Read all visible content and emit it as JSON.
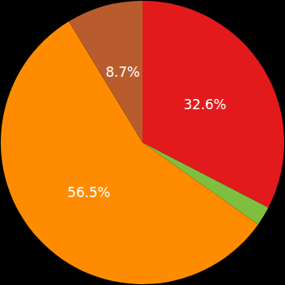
{
  "chart_data": {
    "type": "pie",
    "values": [
      32.6,
      2.2,
      56.5,
      8.7
    ],
    "value_labels": [
      "32.6%",
      null,
      "56.5%",
      "8.7%"
    ],
    "colors": [
      "#e31a1c",
      "#7fbf3f",
      "#ff8c00",
      "#b85c2e"
    ],
    "data_labels": true
  }
}
